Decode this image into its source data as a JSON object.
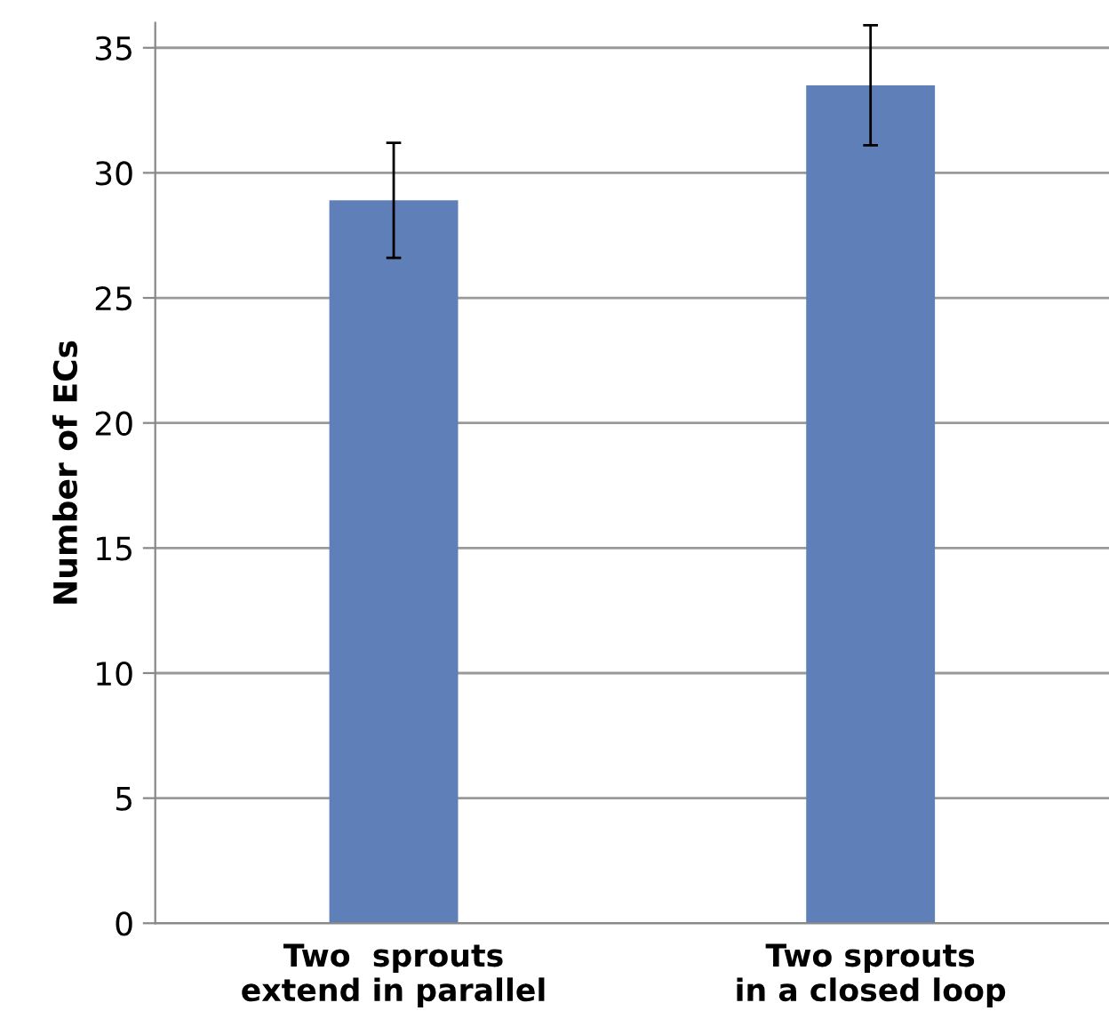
{
  "chart_data": {
    "type": "bar",
    "ylabel": "Number of ECs",
    "categories": [
      "Two  sprouts\nextend in parallel",
      "Two sprouts\nin a closed loop"
    ],
    "values": [
      28.9,
      33.5
    ],
    "errors": [
      2.3,
      2.4
    ],
    "color": "#5f7fb8",
    "ylim": [
      0,
      36
    ],
    "yticks": [
      0,
      5,
      10,
      15,
      20,
      25,
      30,
      35
    ],
    "grid": "y",
    "legend": false
  }
}
